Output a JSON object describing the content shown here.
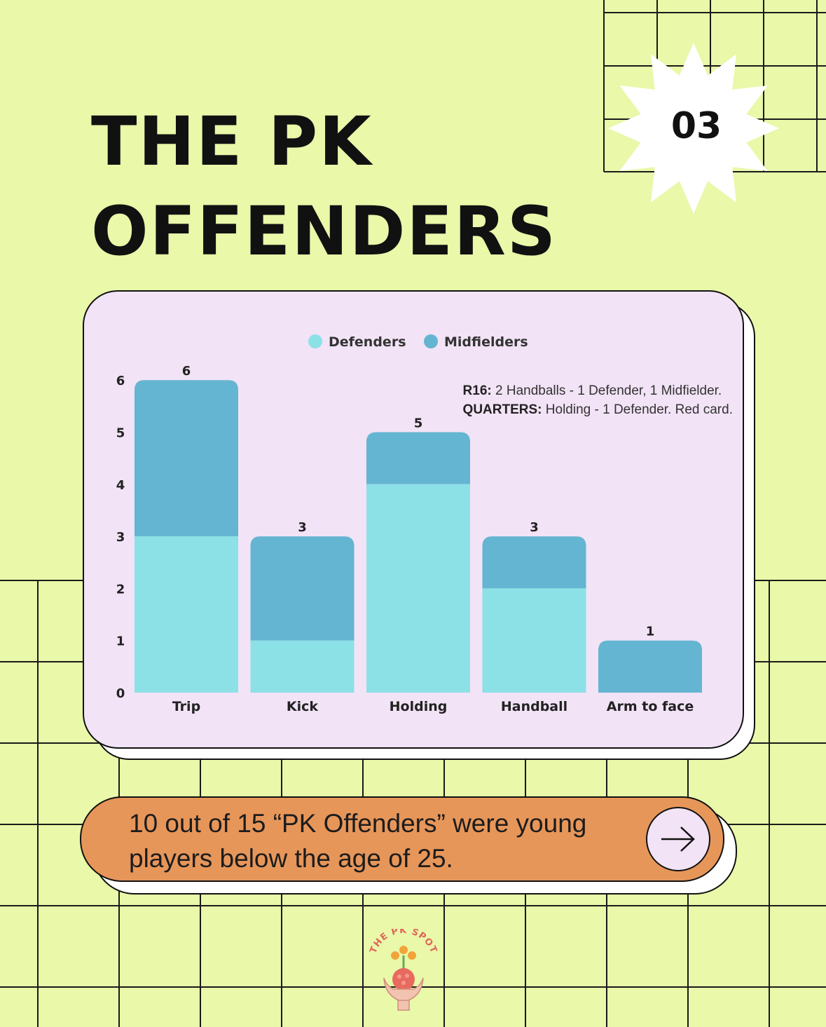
{
  "title": {
    "line1": "THE PK",
    "line2": "OFFENDERS"
  },
  "badge": {
    "number": "03"
  },
  "colors": {
    "background": "#e9f8a9",
    "card": "#f2e3f6",
    "defenders": "#8ce1e6",
    "midfielders": "#64b5d1",
    "pill": "#e7965a"
  },
  "chart_data": {
    "type": "bar",
    "stacked": true,
    "categories": [
      "Trip",
      "Kick",
      "Holding",
      "Handball",
      "Arm to face"
    ],
    "series": [
      {
        "name": "Defenders",
        "values": [
          3,
          1,
          4,
          2,
          0
        ],
        "color": "#8ce1e6"
      },
      {
        "name": "Midfielders",
        "values": [
          3,
          2,
          1,
          1,
          1
        ],
        "color": "#64b5d1"
      }
    ],
    "totals": [
      "6",
      "3",
      "5",
      "3",
      "1"
    ],
    "yticks": [
      "0",
      "1",
      "2",
      "3",
      "4",
      "5",
      "6"
    ],
    "ylim": [
      0,
      6
    ],
    "grid": false,
    "legend_position": "top-center"
  },
  "note": {
    "line1_label": "R16:",
    "line1_text": " 2 Handballs - 1 Defender, 1 Midfielder.",
    "line2_label": "QUARTERS:",
    "line2_text": " Holding - 1 Defender. Red card."
  },
  "callout": {
    "text": "10 out of 15 “PK Offenders” were young players below the age of 25."
  },
  "logo": {
    "text": "THE PK SPOT"
  }
}
